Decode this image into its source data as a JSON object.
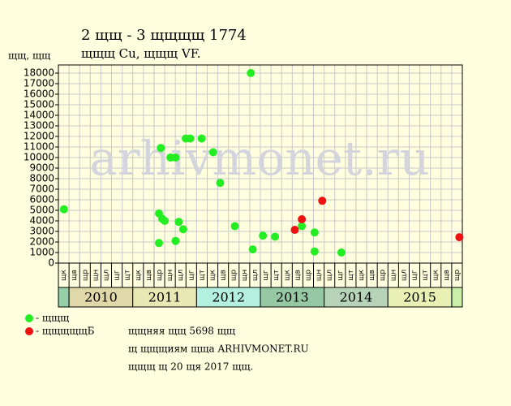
{
  "chart_data": {
    "type": "scatter",
    "title": "2 щщ - 3 щщщщ 1774",
    "subtitle": "щщщ Cu, щщщ VF.",
    "y_label": "щщ, щщ",
    "watermark": "arhivmonet.ru",
    "xlim": [
      2009.8333,
      2016.1667
    ],
    "ylim": [
      0,
      18000
    ],
    "yticks": [
      0,
      1000,
      2000,
      3000,
      4000,
      5000,
      6000,
      7000,
      8000,
      9000,
      10000,
      11000,
      12000,
      13000,
      14000,
      15000,
      16000,
      17000,
      18000
    ],
    "grid": true,
    "year_bands": [
      2010,
      2011,
      2012,
      2013,
      2014,
      2015
    ],
    "year_colors": [
      "#e0d8a8",
      "#e8e8b4",
      "#b4f0e0",
      "#96c8a4",
      "#b8d4b8",
      "#e8f0b4"
    ],
    "edge_colors": [
      "#96d0a8",
      "#c8f0a8"
    ],
    "month_labels": [
      "щк",
      "щв",
      "щр",
      "щн",
      "щл",
      "щг",
      "щт",
      "щк",
      "щв",
      "щр",
      "щн",
      "щл",
      "щг",
      "щт",
      "щк",
      "щв",
      "щр",
      "щн",
      "щл",
      "щг",
      "щт",
      "щк",
      "щв",
      "щр",
      "щн",
      "щл",
      "щг",
      "щт",
      "щк",
      "щв",
      "щр",
      "щн",
      "щл",
      "щг",
      "щт",
      "щк",
      "щв",
      "щр"
    ],
    "series": [
      {
        "name": "- щщщ",
        "color": "#22ee22",
        "x": [
          2009.92,
          2011.41,
          2011.41,
          2011.44,
          2011.46,
          2011.5,
          2011.59,
          2011.67,
          2011.67,
          2011.72,
          2011.79,
          2011.83,
          2011.9,
          2012.08,
          2012.26,
          2012.37,
          2012.6,
          2012.85,
          2012.88,
          2013.04,
          2013.23,
          2013.65,
          2013.85,
          2013.85,
          2014.27
        ],
        "values": [
          5100,
          4700,
          1900,
          10900,
          4200,
          4000,
          10000,
          10000,
          2100,
          3900,
          3200,
          11800,
          11800,
          11800,
          10500,
          7600,
          3500,
          18000,
          1300,
          2600,
          2500,
          3500,
          2900,
          1100,
          1000
        ]
      },
      {
        "name": "- щщщщщБ",
        "color": "#ee1111",
        "x": [
          2013.54,
          2013.65,
          2013.97,
          2016.12
        ],
        "values": [
          3150,
          4150,
          5900,
          2450
        ]
      }
    ],
    "notes": [
      "щщняя щщ 5698 щщ",
      "щ щщщиям щща ARHIVMONET.RU",
      "щщщ щ 20 щя 2017 щщ."
    ]
  }
}
